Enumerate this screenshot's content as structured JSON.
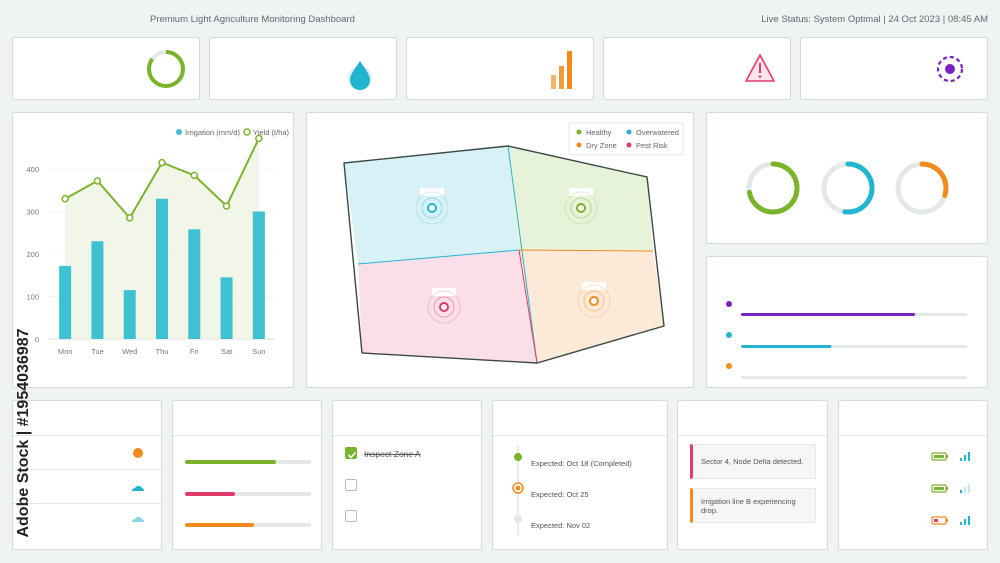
{
  "header": {
    "title": "Premium Light Agriculture Monitoring Dashboard",
    "status_prefix": "Live Status: System Optimal",
    "separator": " | ",
    "date": "24 Oct 2023",
    "time": "08:45 AM"
  },
  "kpi_icons": [
    "progress-ring-icon",
    "water-drop-icon",
    "bar-chart-icon",
    "warning-triangle-icon",
    "target-icon"
  ],
  "colors": {
    "green": "#7ab42a",
    "cyan": "#22b5d0",
    "orange": "#f38a1c",
    "pink": "#e23a6b",
    "purple": "#7a1fc2",
    "bar": "#3ec2d3"
  },
  "chart_data": {
    "type": "bar",
    "categories": [
      "Mon",
      "Tue",
      "Wed",
      "Thu",
      "Fri",
      "Sat",
      "Sun"
    ],
    "series": [
      {
        "name": "Irrigation (mm/d)",
        "type": "bar",
        "values": [
          172,
          230,
          115,
          330,
          258,
          145,
          300
        ]
      },
      {
        "name": "Yield (t/ha)",
        "type": "line",
        "values": [
          330,
          372,
          285,
          415,
          385,
          313,
          472
        ]
      }
    ],
    "yticks": [
      0,
      100,
      200,
      300,
      400
    ],
    "ylim": [
      0,
      480
    ],
    "legend_position": "top-right",
    "grid": true
  },
  "map": {
    "legend": [
      {
        "label": "Healthy",
        "color": "#7ab42a"
      },
      {
        "label": "Overwatered",
        "color": "#22b5d0"
      },
      {
        "label": "Dry Zone",
        "color": "#f38a1c"
      },
      {
        "label": "Pest Risk",
        "color": "#e23a6b"
      }
    ]
  },
  "rings": [
    0.72,
    0.52,
    0.3
  ],
  "progress": [
    0.77,
    0.4
  ],
  "soil_bars": [
    0.72,
    0.4,
    0.55
  ],
  "tasks": [
    {
      "label": "Inspect Zone A",
      "done": true
    },
    {
      "label": "",
      "done": false
    },
    {
      "label": "",
      "done": false
    }
  ],
  "timeline": [
    {
      "label": "Expected: Oct 18 (Completed)"
    },
    {
      "label": "Expected: Oct 25"
    },
    {
      "label": "Expected: Nov 02"
    }
  ],
  "alerts": [
    {
      "text": "Sector 4, Node Delta detected.",
      "color": "#e23a6b"
    },
    {
      "text": "Irrigation line B experiencing drop.",
      "color": "#f38a1c"
    }
  ],
  "watermark": "Adobe Stock | #1954036987"
}
